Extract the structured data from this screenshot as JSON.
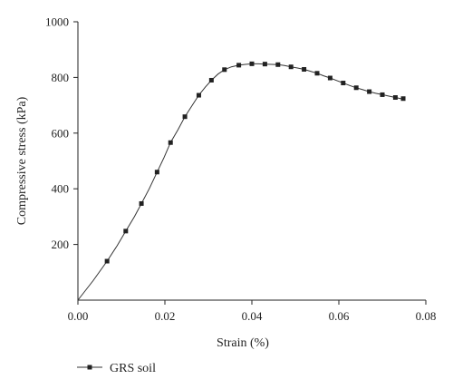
{
  "chart_data": {
    "type": "line",
    "xlabel": "Strain (%)",
    "ylabel": "Compressive stress (kPa)",
    "xlim": [
      0.0,
      0.08
    ],
    "ylim": [
      0,
      1000
    ],
    "xticks": [
      "0.00",
      "0.02",
      "0.04",
      "0.06",
      "0.08"
    ],
    "yticks": [
      "200",
      "400",
      "600",
      "800",
      "1000"
    ],
    "xtick_values": [
      0.0,
      0.02,
      0.04,
      0.06,
      0.08
    ],
    "ytick_values": [
      200,
      400,
      600,
      800,
      1000
    ],
    "grid": false,
    "legend_position": "bottom-left",
    "series": [
      {
        "name": "GRS soil",
        "color": "#222222",
        "marker": "square",
        "line_x": [
          0.0,
          0.0035,
          0.0067,
          0.009,
          0.011,
          0.013,
          0.0146,
          0.0164,
          0.0182,
          0.0198,
          0.0213,
          0.023,
          0.0246,
          0.0263,
          0.0278,
          0.0293,
          0.0307,
          0.0322,
          0.0337,
          0.0353,
          0.037,
          0.0385,
          0.04,
          0.0415,
          0.043,
          0.0445,
          0.046,
          0.0475,
          0.049,
          0.0505,
          0.052,
          0.0535,
          0.055,
          0.0565,
          0.058,
          0.0595,
          0.061,
          0.0625,
          0.064,
          0.0655,
          0.067,
          0.0685,
          0.07,
          0.0715,
          0.073,
          0.0742,
          0.0752
        ],
        "line_y": [
          0,
          70,
          140,
          195,
          248,
          300,
          347,
          400,
          460,
          512,
          566,
          612,
          659,
          700,
          736,
          765,
          790,
          812,
          828,
          838,
          844,
          847,
          849,
          849,
          848,
          847,
          846,
          843,
          838,
          834,
          829,
          822,
          815,
          806,
          798,
          789,
          780,
          771,
          763,
          756,
          749,
          743,
          738,
          733,
          728,
          724,
          722
        ],
        "marker_x": [
          0.0067,
          0.011,
          0.0146,
          0.0182,
          0.0213,
          0.0246,
          0.0278,
          0.0307,
          0.0337,
          0.037,
          0.04,
          0.043,
          0.046,
          0.049,
          0.052,
          0.055,
          0.058,
          0.061,
          0.064,
          0.067,
          0.07,
          0.073,
          0.0748
        ],
        "marker_y": [
          140,
          248,
          347,
          460,
          566,
          659,
          736,
          790,
          828,
          844,
          849,
          848,
          846,
          838,
          829,
          815,
          798,
          780,
          763,
          749,
          738,
          728,
          724
        ]
      }
    ]
  }
}
